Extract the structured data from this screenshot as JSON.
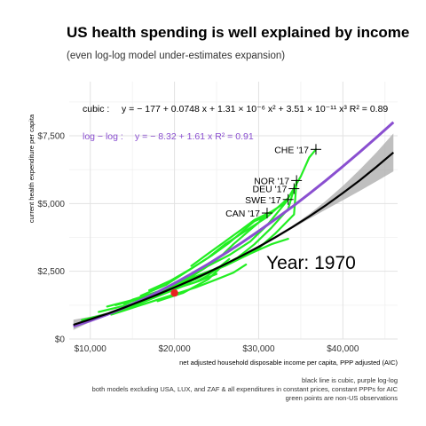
{
  "chart_data": {
    "type": "scatter",
    "title": "US health spending is well explained by income",
    "subtitle": "(even log-log model under-estimates expansion)",
    "xlabel": "net adjusted household disposable income per capita, PPP adjusted (AIC)",
    "ylabel": "current health expenditure per capita",
    "xlim": [
      7500,
      46500
    ],
    "ylim": [
      0,
      9500
    ],
    "x_ticks": [
      10000,
      20000,
      30000,
      40000
    ],
    "x_tick_labels": [
      "$10,000",
      "$20,000",
      "$30,000",
      "$40,000"
    ],
    "y_ticks": [
      0,
      2500,
      5000,
      7500
    ],
    "y_tick_labels": [
      "$0",
      "$2,500",
      "$5,000",
      "$7,500"
    ],
    "grid": true,
    "annotations": {
      "cubic_label": "cubic :",
      "cubic_equation": "y = − 177 + 0.0748 x + 1.31 × 10⁻⁶ x² + 3.51 × 10⁻¹¹ x³   R² = 0.89",
      "loglog_label": "log − log :",
      "loglog_equation": "y = − 8.32 + 1.61 x   R² = 0.91",
      "year_label": "Year: 1970"
    },
    "captions": [
      "black line is cubic, purple log-log",
      "both models excluding USA, LUX, and ZAF & all expenditures in constant prices, constant PPPs for AIC",
      "green points are non-US observations"
    ],
    "colors": {
      "cubic": "#000000",
      "loglog": "#8a4fd0",
      "band": "#a9a9a9",
      "observations": "#22ee22",
      "us_point": "#e8221f"
    },
    "series": [
      {
        "name": "cubic",
        "x": [
          8000,
          10000,
          12000,
          14000,
          16000,
          18000,
          20000,
          22000,
          24000,
          26000,
          28000,
          30000,
          32000,
          34000,
          36000,
          38000,
          40000,
          42000,
          44000,
          46000
        ],
        "y": [
          524,
          726,
          929,
          1158,
          1397,
          1645,
          1904,
          2174,
          2458,
          2757,
          3072,
          3405,
          3757,
          4130,
          4525,
          4944,
          5388,
          5858,
          6358,
          6886
        ]
      },
      {
        "name": "log-log",
        "x": [
          8000,
          10000,
          12000,
          14000,
          16000,
          18000,
          20000,
          22000,
          24000,
          26000,
          28000,
          30000,
          32000,
          34000,
          36000,
          38000,
          40000,
          42000,
          44000,
          46000
        ],
        "y": [
          469,
          671,
          900,
          1154,
          1433,
          1734,
          2058,
          2403,
          2769,
          3154,
          3559,
          3983,
          4425,
          4885,
          5363,
          5858,
          6370,
          6898,
          7442,
          8002
        ]
      }
    ],
    "countries": [
      {
        "label": "CHE '17",
        "x": 36800,
        "y": 7000
      },
      {
        "label": "NOR '17",
        "x": 34500,
        "y": 5850
      },
      {
        "label": "DEU '17",
        "x": 34200,
        "y": 5550
      },
      {
        "label": "SWE '17",
        "x": 33500,
        "y": 5150
      },
      {
        "label": "CAN '17",
        "x": 31000,
        "y": 4650
      }
    ],
    "us_point": {
      "x": 20000,
      "y": 1700
    }
  }
}
